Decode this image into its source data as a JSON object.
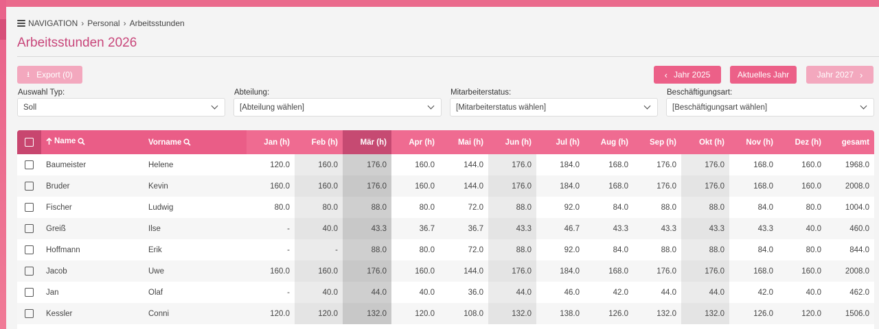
{
  "breadcrumb": {
    "nav": "NAVIGATION",
    "items": [
      "Personal",
      "Arbeitsstunden"
    ]
  },
  "page_title": "Arbeitsstunden 2026",
  "toolbar": {
    "export_label": "Export (0)",
    "prev_year_label": "Jahr 2025",
    "current_year_label": "Aktuelles Jahr",
    "next_year_label": "Jahr 2027"
  },
  "filters": [
    {
      "label": "Auswahl Typ:",
      "value": "Soll"
    },
    {
      "label": "Abteilung:",
      "value": "[Abteilung wählen]"
    },
    {
      "label": "Mitarbeiterstatus:",
      "value": "[Mitarbeiterstatus wählen]"
    },
    {
      "label": "Beschäftigungsart:",
      "value": "[Beschäftigungsart wählen]"
    }
  ],
  "table": {
    "columns": [
      "Name",
      "Vorname",
      "Jan (h)",
      "Feb (h)",
      "Mär (h)",
      "Apr (h)",
      "Mai (h)",
      "Jun (h)",
      "Jul (h)",
      "Aug (h)",
      "Sep (h)",
      "Okt (h)",
      "Nov (h)",
      "Dez (h)",
      "gesamt"
    ],
    "rows": [
      [
        "Baumeister",
        "Helene",
        "120.0",
        "160.0",
        "176.0",
        "160.0",
        "144.0",
        "176.0",
        "184.0",
        "168.0",
        "176.0",
        "176.0",
        "168.0",
        "160.0",
        "1968.0"
      ],
      [
        "Bruder",
        "Kevin",
        "160.0",
        "160.0",
        "176.0",
        "160.0",
        "144.0",
        "176.0",
        "184.0",
        "168.0",
        "176.0",
        "176.0",
        "168.0",
        "160.0",
        "2008.0"
      ],
      [
        "Fischer",
        "Ludwig",
        "80.0",
        "80.0",
        "88.0",
        "80.0",
        "72.0",
        "88.0",
        "92.0",
        "84.0",
        "88.0",
        "88.0",
        "84.0",
        "80.0",
        "1004.0"
      ],
      [
        "Greiß",
        "Ilse",
        "-",
        "40.0",
        "43.3",
        "36.7",
        "36.7",
        "43.3",
        "46.7",
        "43.3",
        "43.3",
        "43.3",
        "43.3",
        "40.0",
        "460.0"
      ],
      [
        "Hoffmann",
        "Erik",
        "-",
        "-",
        "88.0",
        "80.0",
        "72.0",
        "88.0",
        "92.0",
        "84.0",
        "88.0",
        "88.0",
        "84.0",
        "80.0",
        "844.0"
      ],
      [
        "Jacob",
        "Uwe",
        "160.0",
        "160.0",
        "176.0",
        "160.0",
        "144.0",
        "176.0",
        "184.0",
        "168.0",
        "176.0",
        "176.0",
        "168.0",
        "160.0",
        "2008.0"
      ],
      [
        "Jan",
        "Olaf",
        "-",
        "40.0",
        "44.0",
        "40.0",
        "36.0",
        "44.0",
        "46.0",
        "42.0",
        "44.0",
        "44.0",
        "42.0",
        "40.0",
        "462.0"
      ],
      [
        "Kessler",
        "Conni",
        "120.0",
        "120.0",
        "132.0",
        "120.0",
        "108.0",
        "132.0",
        "138.0",
        "126.0",
        "132.0",
        "132.0",
        "126.0",
        "120.0",
        "1506.0"
      ]
    ]
  },
  "colors": {
    "accent": "#ec6088",
    "title": "#c8467a",
    "disabled_button": "#f3a8be",
    "header": "#ef6b91",
    "highlight_column": "#c64a72"
  }
}
